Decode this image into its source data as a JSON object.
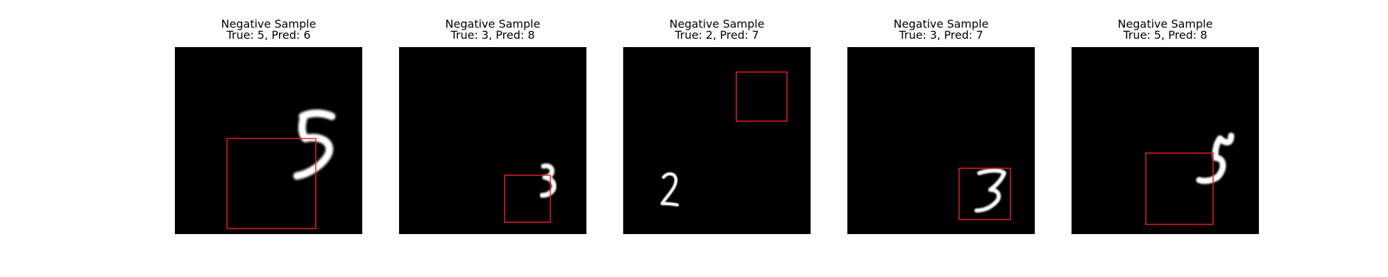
{
  "samples": [
    {
      "title": "Negative Sample",
      "label": "True: 5, Pred: 6",
      "digit": "five-digit",
      "box_color": "#e8211c"
    },
    {
      "title": "Negative Sample",
      "label": "True: 3, Pred: 8",
      "digit": "three-digit",
      "box_color": "#e8211c"
    },
    {
      "title": "Negative Sample",
      "label": "True: 2, Pred: 7",
      "digit": "two-digit",
      "box_color": "#e8211c"
    },
    {
      "title": "Negative Sample",
      "label": "True: 3, Pred: 7",
      "digit": "three-digit",
      "box_color": "#e8211c"
    },
    {
      "title": "Negative Sample",
      "label": "True: 5, Pred: 8",
      "digit": "five-digit",
      "box_color": "#e8211c"
    }
  ]
}
